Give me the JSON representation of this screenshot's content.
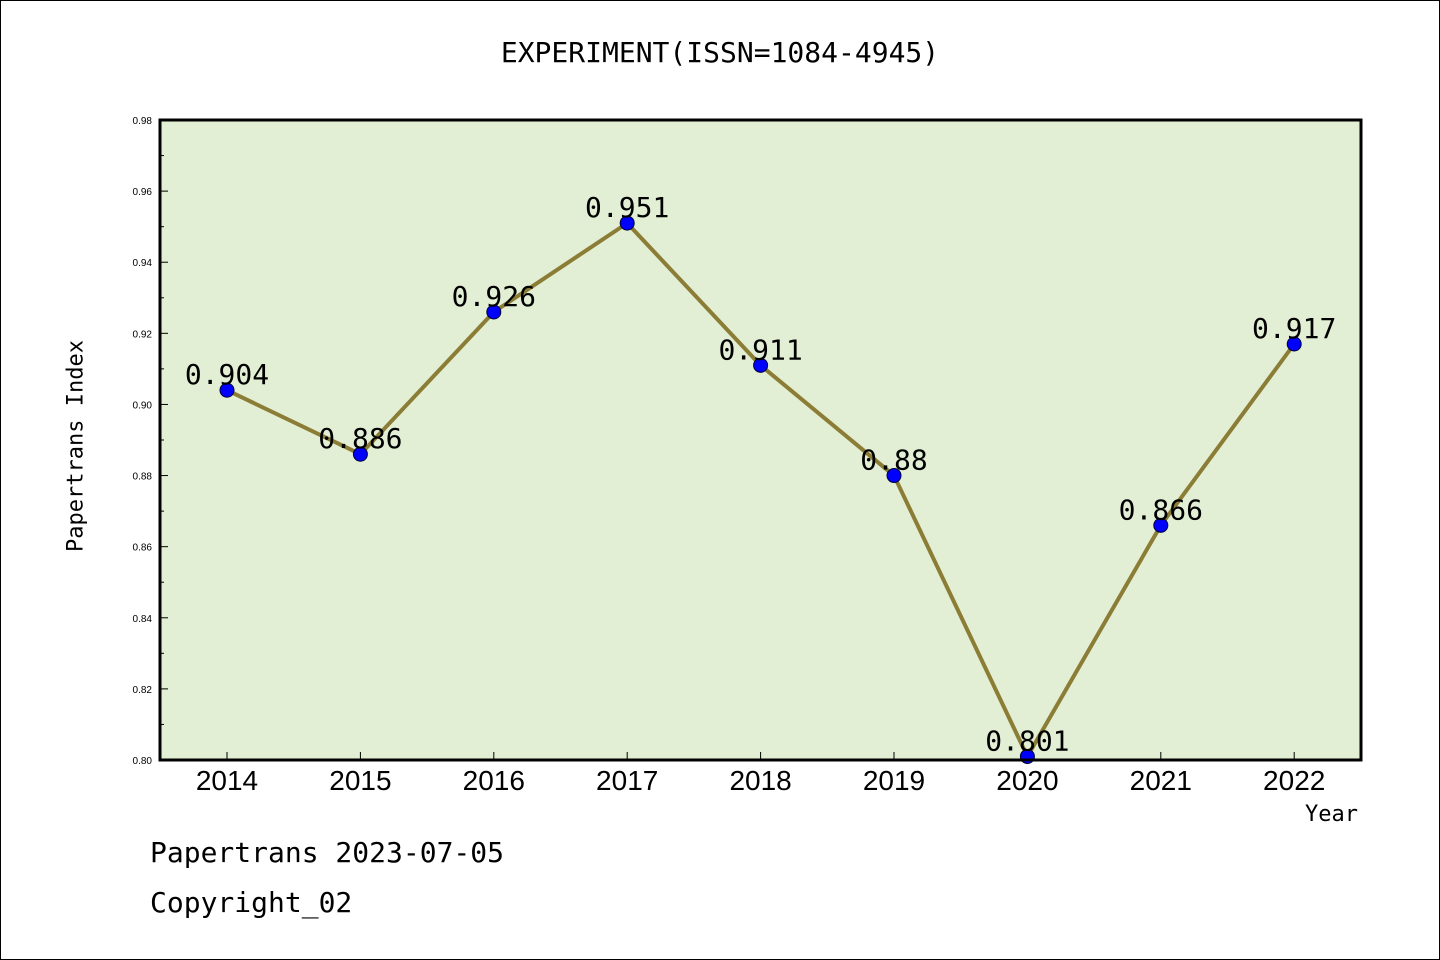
{
  "chart_data": {
    "type": "line",
    "title": "EXPERIMENT(ISSN=1084-4945)",
    "xlabel": "Year",
    "ylabel": "Papertrans Index",
    "x": [
      "2014",
      "2015",
      "2016",
      "2017",
      "2018",
      "2019",
      "2020",
      "2021",
      "2022"
    ],
    "values": [
      0.904,
      0.886,
      0.926,
      0.951,
      0.911,
      0.88,
      0.801,
      0.866,
      0.917
    ],
    "data_labels": [
      "0.904",
      "0.886",
      "0.926",
      "0.951",
      "0.911",
      "0.88",
      "0.801",
      "0.866",
      "0.917"
    ],
    "ylim": [
      0.8,
      0.98
    ],
    "yticks": [
      "0.80",
      "0.82",
      "0.84",
      "0.86",
      "0.88",
      "0.90",
      "0.92",
      "0.94",
      "0.96",
      "0.98"
    ],
    "grid": false,
    "colors": {
      "line": "#8b7d35",
      "marker": "#0000ff",
      "plot_background": "#e2efd4"
    }
  },
  "footer": {
    "line1": "Papertrans 2023-07-05",
    "line2": "Copyright_02"
  }
}
